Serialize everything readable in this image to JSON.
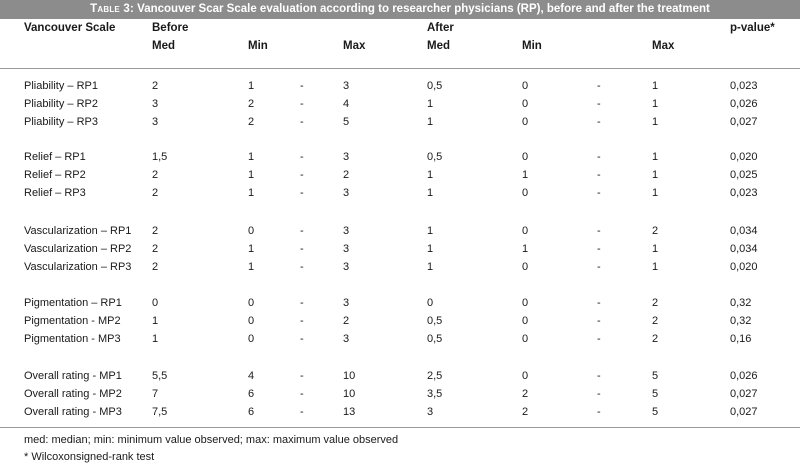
{
  "title": {
    "lead": "Table 3:",
    "text": " Vancouver Scar Scale evaluation according to researcher physicians (RP), before and after the treatment"
  },
  "header": {
    "col_scale": "Vancouver Scale",
    "group_before": "Before",
    "group_after": "After",
    "col_pvalue": "p-value*",
    "before_med": "Med",
    "before_min": "Min",
    "before_max": "Max",
    "after_med": "Med",
    "after_min": "Min",
    "after_max": "Max"
  },
  "rows": [
    {
      "label": "Pliability – RP1",
      "b_med": "2",
      "b_min": "1",
      "dash1": "-",
      "b_max": "3",
      "a_med": "0,5",
      "a_min": "0",
      "dash2": "-",
      "a_max": "1",
      "p": "0,023"
    },
    {
      "label": "Pliability – RP2",
      "b_med": "3",
      "b_min": "2",
      "dash1": "-",
      "b_max": "4",
      "a_med": "1",
      "a_min": "0",
      "dash2": "-",
      "a_max": "1",
      "p": "0,026"
    },
    {
      "label": "Pliability – RP3",
      "b_med": "3",
      "b_min": "2",
      "dash1": "-",
      "b_max": "5",
      "a_med": "1",
      "a_min": "0",
      "dash2": "-",
      "a_max": "1",
      "p": "0,027"
    },
    {
      "label": "Relief – RP1",
      "b_med": "1,5",
      "b_min": "1",
      "dash1": "-",
      "b_max": "3",
      "a_med": "0,5",
      "a_min": "0",
      "dash2": "-",
      "a_max": "1",
      "p": "0,020"
    },
    {
      "label": "Relief – RP2",
      "b_med": "2",
      "b_min": "1",
      "dash1": "-",
      "b_max": "2",
      "a_med": "1",
      "a_min": "1",
      "dash2": "-",
      "a_max": "1",
      "p": "0,025"
    },
    {
      "label": "Relief – RP3",
      "b_med": "2",
      "b_min": "1",
      "dash1": "-",
      "b_max": "3",
      "a_med": "1",
      "a_min": "0",
      "dash2": "-",
      "a_max": "1",
      "p": "0,023"
    },
    {
      "label": "Vascularization – RP1",
      "b_med": "2",
      "b_min": "0",
      "dash1": "-",
      "b_max": "3",
      "a_med": "1",
      "a_min": "0",
      "dash2": "-",
      "a_max": "2",
      "p": "0,034"
    },
    {
      "label": "Vascularization – RP2",
      "b_med": "2",
      "b_min": "1",
      "dash1": "-",
      "b_max": "3",
      "a_med": "1",
      "a_min": "1",
      "dash2": "-",
      "a_max": "1",
      "p": "0,034"
    },
    {
      "label": "Vascularization – RP3",
      "b_med": "2",
      "b_min": "1",
      "dash1": "-",
      "b_max": "3",
      "a_med": "1",
      "a_min": "0",
      "dash2": "-",
      "a_max": "1",
      "p": "0,020"
    },
    {
      "label": "Pigmentation – RP1",
      "b_med": "0",
      "b_min": "0",
      "dash1": "-",
      "b_max": "3",
      "a_med": "0",
      "a_min": "0",
      "dash2": "-",
      "a_max": "2",
      "p": "0,32"
    },
    {
      "label": "Pigmentation  - MP2",
      "b_med": "1",
      "b_min": "0",
      "dash1": "-",
      "b_max": "2",
      "a_med": "0,5",
      "a_min": "0",
      "dash2": "-",
      "a_max": "2",
      "p": "0,32"
    },
    {
      "label": "Pigmentation  - MP3",
      "b_med": "1",
      "b_min": "0",
      "dash1": "-",
      "b_max": "3",
      "a_med": "0,5",
      "a_min": "0",
      "dash2": "-",
      "a_max": "2",
      "p": "0,16"
    },
    {
      "label": "Overall rating  - MP1",
      "b_med": "5,5",
      "b_min": "4",
      "dash1": "-",
      "b_max": "10",
      "a_med": "2,5",
      "a_min": "0",
      "dash2": "-",
      "a_max": "5",
      "p": "0,026"
    },
    {
      "label": "Overall rating  - MP2",
      "b_med": "7",
      "b_min": "6",
      "dash1": "-",
      "b_max": "10",
      "a_med": "3,5",
      "a_min": "2",
      "dash2": "-",
      "a_max": "5",
      "p": "0,027"
    },
    {
      "label": "Overall rating  - MP3",
      "b_med": "7,5",
      "b_min": "6",
      "dash1": "-",
      "b_max": "13",
      "a_med": "3",
      "a_min": "2",
      "dash2": "-",
      "a_max": "5",
      "p": "0,027"
    }
  ],
  "footnotes": {
    "abbrev": "med: median; min: minimum value observed; max: maximum value observed",
    "test": "* Wilcoxonsigned-rank test"
  },
  "colors": {
    "title_bar_bg": "#8c8c8c",
    "title_text": "#ffffff",
    "rule": "#9a9a9a"
  }
}
